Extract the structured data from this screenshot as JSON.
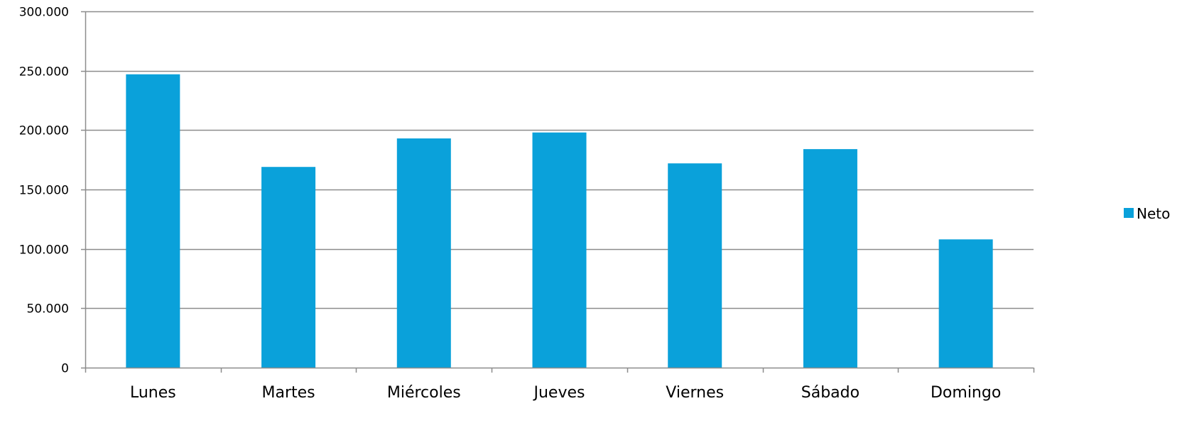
{
  "chart_data": {
    "type": "bar",
    "categories": [
      "Lunes",
      "Martes",
      "Miércoles",
      "Jueves",
      "Viernes",
      "Sábado",
      "Domingo"
    ],
    "series": [
      {
        "name": "Neto",
        "color": "#0AA1DA",
        "values": [
          247000,
          169000,
          193000,
          198000,
          172000,
          184000,
          108000
        ]
      }
    ],
    "y_ticks": [
      "0",
      "50.000",
      "100.000",
      "150.000",
      "200.000",
      "250.000",
      "300.000"
    ],
    "ylim": [
      0,
      300000
    ],
    "grid": true,
    "legend_position": "right"
  }
}
